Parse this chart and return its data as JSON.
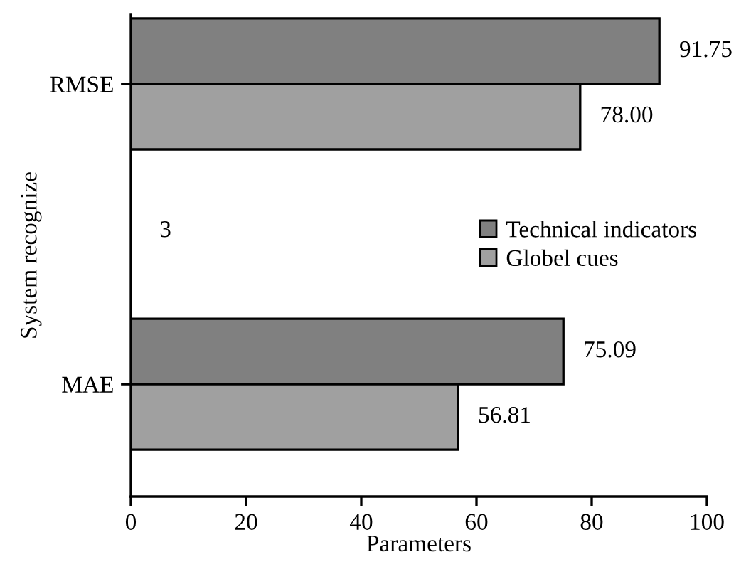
{
  "chart_data": {
    "type": "bar",
    "orientation": "horizontal",
    "xlabel": "Parameters",
    "ylabel": "System recognize",
    "categories": [
      "RMSE",
      "MAE"
    ],
    "series": [
      {
        "name": "Technical indicators",
        "color": "#808080",
        "values": [
          91.75,
          75.09
        ],
        "value_labels": [
          "91.75",
          "75.09"
        ]
      },
      {
        "name": "Globel cues",
        "color": "#a0a0a0",
        "values": [
          78.0,
          56.81
        ],
        "value_labels": [
          "78.00",
          "56.81"
        ]
      }
    ],
    "xlim": [
      0,
      100
    ],
    "xticks": [
      0,
      20,
      40,
      60,
      80,
      100
    ],
    "grid": false,
    "legend": "right",
    "annotations": [
      "3"
    ]
  }
}
